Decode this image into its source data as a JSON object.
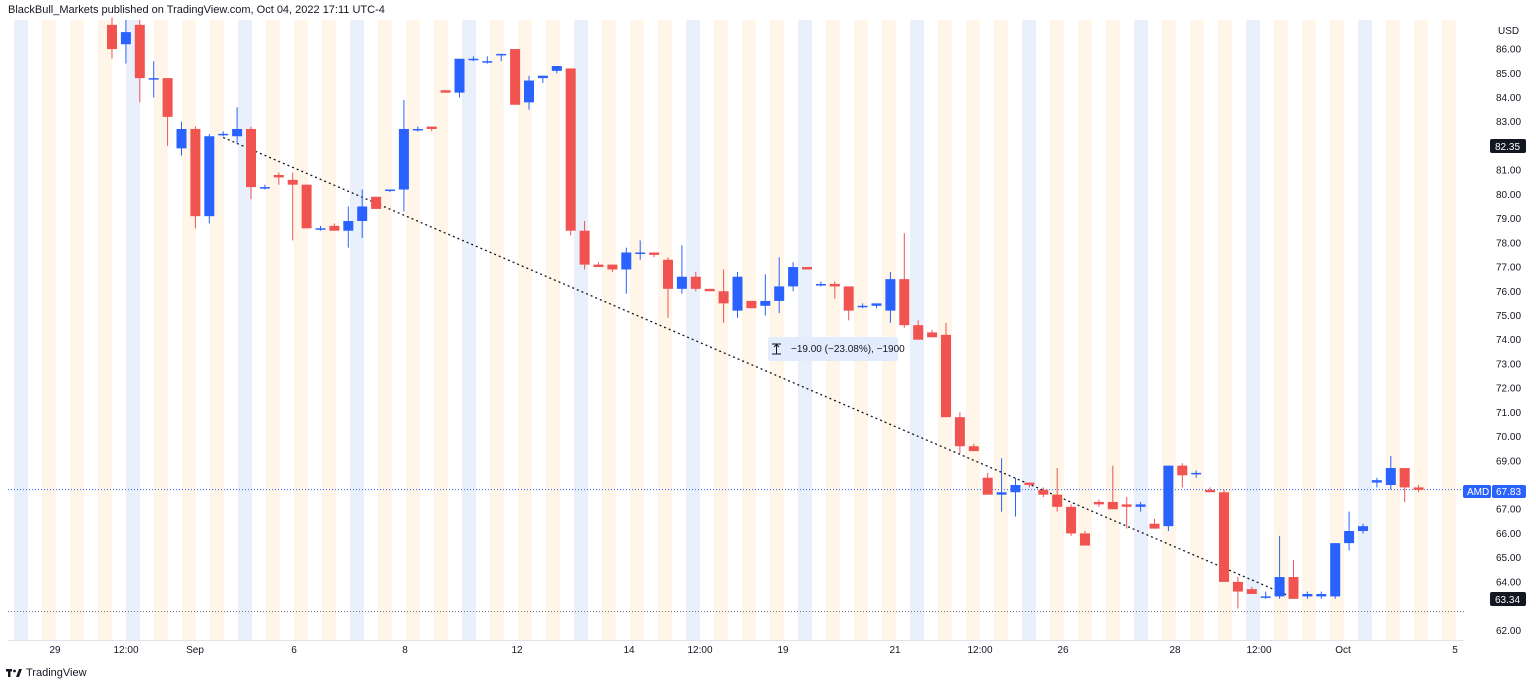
{
  "header": {
    "publisher_line": "BlackBull_Markets published on TradingView.com, Oct 04, 2022 17:11 UTC-4"
  },
  "footer": {
    "brand": "TradingView",
    "logo_icon": "tradingview-logo-icon"
  },
  "measure": {
    "label": "−19.00 (−23.08%), −1900",
    "icon": "measure-icon"
  },
  "price_axis": {
    "currency": "USD",
    "ticks": [
      "86.00",
      "85.00",
      "84.00",
      "83.00",
      "81.00",
      "80.00",
      "79.00",
      "78.00",
      "77.00",
      "76.00",
      "75.00",
      "74.00",
      "73.00",
      "72.00",
      "71.00",
      "70.00",
      "69.00",
      "67.00",
      "66.00",
      "65.00",
      "64.00",
      "62.00"
    ]
  },
  "badges": {
    "high_line": "82.35",
    "symbol": "AMD",
    "last_price": "67.83",
    "low_line": "63.34"
  },
  "time_axis": {
    "labels": [
      "29",
      "12:00",
      "Sep",
      "6",
      "8",
      "12",
      "14",
      "12:00",
      "19",
      "21",
      "12:00",
      "26",
      "28",
      "12:00",
      "Oct",
      "5"
    ]
  },
  "colors": {
    "up": "#2962ff",
    "down": "#f05350",
    "band_orange": "#fff5e8",
    "band_blue": "#eaf0fb"
  },
  "chart_data": {
    "type": "candlestick",
    "symbol": "AMD",
    "currency": "USD",
    "ylim": [
      61.6,
      87.2
    ],
    "last_price": 67.83,
    "candles": [
      {
        "o": 87.0,
        "h": 87.3,
        "l": 85.6,
        "c": 86.0
      },
      {
        "o": 86.2,
        "h": 87.2,
        "l": 85.4,
        "c": 86.7
      },
      {
        "o": 87.0,
        "h": 87.2,
        "l": 83.8,
        "c": 84.8
      },
      {
        "o": 84.8,
        "h": 85.5,
        "l": 84.0,
        "c": 84.8
      },
      {
        "o": 84.8,
        "h": 84.8,
        "l": 82.0,
        "c": 83.2
      },
      {
        "o": 81.9,
        "h": 83.0,
        "l": 81.6,
        "c": 82.7
      },
      {
        "o": 82.7,
        "h": 82.8,
        "l": 78.6,
        "c": 79.1
      },
      {
        "o": 79.1,
        "h": 82.5,
        "l": 78.8,
        "c": 82.4
      },
      {
        "o": 82.5,
        "h": 82.6,
        "l": 82.4,
        "c": 82.5
      },
      {
        "o": 82.4,
        "h": 83.6,
        "l": 82.1,
        "c": 82.7
      },
      {
        "o": 82.7,
        "h": 82.8,
        "l": 79.8,
        "c": 80.3
      },
      {
        "o": 80.3,
        "h": 80.4,
        "l": 80.2,
        "c": 80.3
      },
      {
        "o": 80.8,
        "h": 80.9,
        "l": 80.4,
        "c": 80.7
      },
      {
        "o": 80.6,
        "h": 80.9,
        "l": 78.1,
        "c": 80.4
      },
      {
        "o": 80.4,
        "h": 80.4,
        "l": 78.6,
        "c": 78.6
      },
      {
        "o": 78.6,
        "h": 78.7,
        "l": 78.5,
        "c": 78.6
      },
      {
        "o": 78.7,
        "h": 78.8,
        "l": 78.5,
        "c": 78.5
      },
      {
        "o": 78.5,
        "h": 79.5,
        "l": 77.8,
        "c": 78.9
      },
      {
        "o": 78.9,
        "h": 80.2,
        "l": 78.2,
        "c": 79.5
      },
      {
        "o": 79.9,
        "h": 79.9,
        "l": 79.4,
        "c": 79.4
      },
      {
        "o": 80.2,
        "h": 80.2,
        "l": 80.1,
        "c": 80.2
      },
      {
        "o": 80.2,
        "h": 83.9,
        "l": 79.3,
        "c": 82.7
      },
      {
        "o": 82.7,
        "h": 82.8,
        "l": 82.6,
        "c": 82.7
      },
      {
        "o": 82.8,
        "h": 82.8,
        "l": 82.6,
        "c": 82.7
      },
      {
        "o": 84.3,
        "h": 84.3,
        "l": 84.2,
        "c": 84.2
      },
      {
        "o": 84.2,
        "h": 85.6,
        "l": 84.0,
        "c": 85.6
      },
      {
        "o": 85.6,
        "h": 85.7,
        "l": 85.5,
        "c": 85.6
      },
      {
        "o": 85.5,
        "h": 85.7,
        "l": 85.4,
        "c": 85.5
      },
      {
        "o": 85.8,
        "h": 85.8,
        "l": 85.5,
        "c": 85.8
      },
      {
        "o": 86.0,
        "h": 86.0,
        "l": 83.7,
        "c": 83.7
      },
      {
        "o": 83.8,
        "h": 84.9,
        "l": 83.5,
        "c": 84.7
      },
      {
        "o": 84.8,
        "h": 84.9,
        "l": 84.6,
        "c": 84.9
      },
      {
        "o": 85.1,
        "h": 85.3,
        "l": 85.0,
        "c": 85.3
      },
      {
        "o": 85.2,
        "h": 85.2,
        "l": 78.3,
        "c": 78.5
      },
      {
        "o": 78.5,
        "h": 78.9,
        "l": 76.9,
        "c": 77.1
      },
      {
        "o": 77.1,
        "h": 77.2,
        "l": 77.0,
        "c": 77.0
      },
      {
        "o": 77.1,
        "h": 77.1,
        "l": 76.8,
        "c": 76.9
      },
      {
        "o": 76.9,
        "h": 77.8,
        "l": 75.9,
        "c": 77.6
      },
      {
        "o": 77.6,
        "h": 78.1,
        "l": 77.3,
        "c": 77.6
      },
      {
        "o": 77.6,
        "h": 77.6,
        "l": 77.4,
        "c": 77.5
      },
      {
        "o": 77.3,
        "h": 77.4,
        "l": 74.9,
        "c": 76.1
      },
      {
        "o": 76.1,
        "h": 77.9,
        "l": 75.9,
        "c": 76.6
      },
      {
        "o": 76.6,
        "h": 76.8,
        "l": 76.0,
        "c": 76.1
      },
      {
        "o": 76.1,
        "h": 76.1,
        "l": 76.0,
        "c": 76.0
      },
      {
        "o": 76.0,
        "h": 76.9,
        "l": 74.7,
        "c": 75.5
      },
      {
        "o": 75.2,
        "h": 76.8,
        "l": 74.9,
        "c": 76.6
      },
      {
        "o": 75.6,
        "h": 75.6,
        "l": 75.3,
        "c": 75.3
      },
      {
        "o": 75.4,
        "h": 76.7,
        "l": 75.0,
        "c": 75.6
      },
      {
        "o": 75.6,
        "h": 77.4,
        "l": 75.1,
        "c": 76.2
      },
      {
        "o": 76.2,
        "h": 77.2,
        "l": 76.0,
        "c": 77.0
      },
      {
        "o": 77.0,
        "h": 77.0,
        "l": 76.9,
        "c": 76.9
      },
      {
        "o": 76.3,
        "h": 76.4,
        "l": 76.2,
        "c": 76.3
      },
      {
        "o": 76.3,
        "h": 76.4,
        "l": 75.7,
        "c": 76.2
      },
      {
        "o": 76.2,
        "h": 76.2,
        "l": 74.8,
        "c": 75.2
      },
      {
        "o": 75.4,
        "h": 75.5,
        "l": 75.3,
        "c": 75.4
      },
      {
        "o": 75.4,
        "h": 75.5,
        "l": 75.3,
        "c": 75.5
      },
      {
        "o": 75.2,
        "h": 76.8,
        "l": 74.7,
        "c": 76.5
      },
      {
        "o": 76.5,
        "h": 78.4,
        "l": 74.5,
        "c": 74.6
      },
      {
        "o": 74.6,
        "h": 74.8,
        "l": 74.0,
        "c": 74.0
      },
      {
        "o": 74.3,
        "h": 74.4,
        "l": 74.1,
        "c": 74.1
      },
      {
        "o": 74.2,
        "h": 74.7,
        "l": 70.8,
        "c": 70.8
      },
      {
        "o": 70.8,
        "h": 71.0,
        "l": 69.3,
        "c": 69.6
      },
      {
        "o": 69.6,
        "h": 69.7,
        "l": 69.4,
        "c": 69.4
      },
      {
        "o": 68.3,
        "h": 68.5,
        "l": 67.6,
        "c": 67.6
      },
      {
        "o": 67.6,
        "h": 69.1,
        "l": 66.9,
        "c": 67.7
      },
      {
        "o": 67.7,
        "h": 68.3,
        "l": 66.7,
        "c": 68.0
      },
      {
        "o": 68.1,
        "h": 68.1,
        "l": 67.9,
        "c": 68.0
      },
      {
        "o": 67.8,
        "h": 67.9,
        "l": 67.5,
        "c": 67.6
      },
      {
        "o": 67.6,
        "h": 68.7,
        "l": 66.9,
        "c": 67.1
      },
      {
        "o": 67.1,
        "h": 67.2,
        "l": 65.9,
        "c": 66.0
      },
      {
        "o": 66.0,
        "h": 66.1,
        "l": 65.6,
        "c": 65.5
      },
      {
        "o": 67.3,
        "h": 67.4,
        "l": 67.1,
        "c": 67.2
      },
      {
        "o": 67.3,
        "h": 68.8,
        "l": 67.0,
        "c": 67.0
      },
      {
        "o": 67.2,
        "h": 67.5,
        "l": 66.2,
        "c": 67.1
      },
      {
        "o": 67.1,
        "h": 67.3,
        "l": 66.9,
        "c": 67.2
      },
      {
        "o": 66.4,
        "h": 66.6,
        "l": 66.2,
        "c": 66.2
      },
      {
        "o": 66.3,
        "h": 68.8,
        "l": 66.1,
        "c": 68.8
      },
      {
        "o": 68.8,
        "h": 68.9,
        "l": 67.9,
        "c": 68.4
      },
      {
        "o": 68.5,
        "h": 68.6,
        "l": 68.3,
        "c": 68.5
      },
      {
        "o": 67.8,
        "h": 67.9,
        "l": 67.7,
        "c": 67.7
      },
      {
        "o": 67.7,
        "h": 67.8,
        "l": 64.0,
        "c": 64.0
      },
      {
        "o": 64.0,
        "h": 64.2,
        "l": 62.9,
        "c": 63.6
      },
      {
        "o": 63.7,
        "h": 63.8,
        "l": 63.5,
        "c": 63.5
      },
      {
        "o": 63.4,
        "h": 63.6,
        "l": 63.3,
        "c": 63.4
      },
      {
        "o": 63.4,
        "h": 65.9,
        "l": 63.3,
        "c": 64.2
      },
      {
        "o": 64.2,
        "h": 64.9,
        "l": 63.3,
        "c": 63.3
      },
      {
        "o": 63.4,
        "h": 63.6,
        "l": 63.3,
        "c": 63.5
      },
      {
        "o": 63.4,
        "h": 63.6,
        "l": 63.3,
        "c": 63.5
      },
      {
        "o": 63.4,
        "h": 65.6,
        "l": 63.3,
        "c": 65.6
      },
      {
        "o": 65.6,
        "h": 66.9,
        "l": 65.3,
        "c": 66.1
      },
      {
        "o": 66.1,
        "h": 66.4,
        "l": 66.0,
        "c": 66.3
      },
      {
        "o": 68.1,
        "h": 68.3,
        "l": 67.9,
        "c": 68.2
      },
      {
        "o": 68.0,
        "h": 69.2,
        "l": 67.8,
        "c": 68.7
      },
      {
        "o": 68.7,
        "h": 68.7,
        "l": 67.3,
        "c": 67.9
      },
      {
        "o": 67.9,
        "h": 68.0,
        "l": 67.7,
        "c": 67.8
      }
    ],
    "trendline": {
      "from": {
        "candle": 8,
        "price": 82.35
      },
      "to": {
        "candle": 85,
        "price": 63.34
      },
      "style": "dotted"
    },
    "horizontal_lines": [
      67.83,
      62.8
    ]
  }
}
